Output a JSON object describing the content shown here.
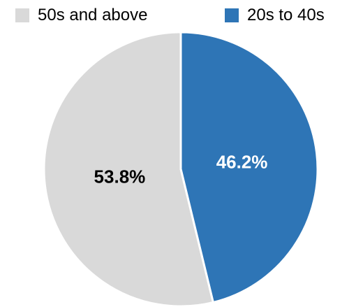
{
  "chart_data": {
    "type": "pie",
    "legend_position": "top",
    "slices": [
      {
        "label": "20s to 40s",
        "value": 46.2,
        "display": "46.2%",
        "color": "#2e75b6",
        "label_color": "#ffffff"
      },
      {
        "label": "50s and above",
        "value": 53.8,
        "display": "53.8%",
        "color": "#d9d9d9",
        "label_color": "#000000"
      }
    ]
  }
}
